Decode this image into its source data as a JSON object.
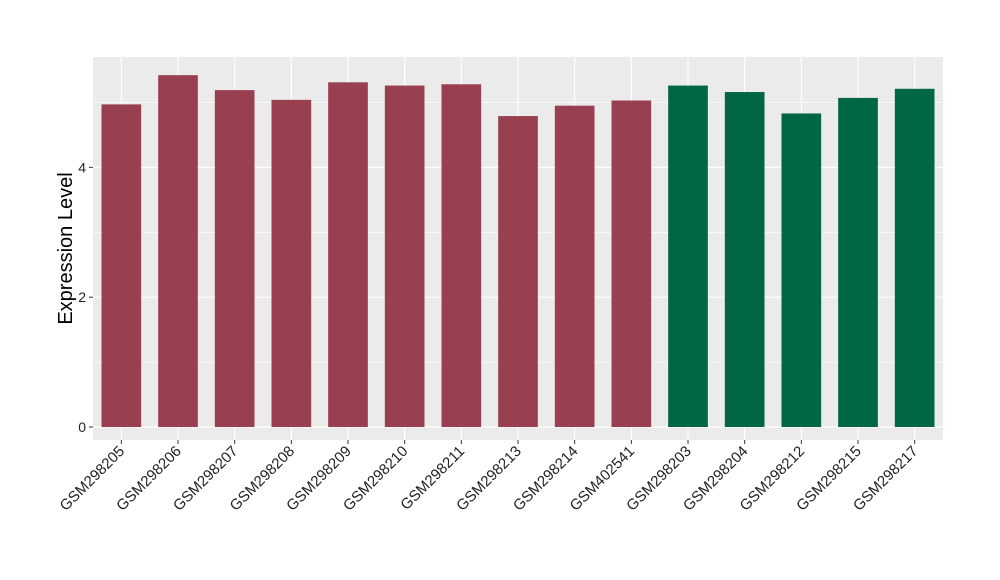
{
  "chart_data": {
    "type": "bar",
    "title": "",
    "xlabel": "",
    "ylabel": "Expression Level",
    "ylim": [
      -0.2,
      5.7
    ],
    "yticks": [
      0,
      2,
      4
    ],
    "grid": true,
    "legend": "none",
    "panel_background": "#ebebeb",
    "grid_color": "#ffffff",
    "categories": [
      "GSM298205",
      "GSM298206",
      "GSM298207",
      "GSM298208",
      "GSM298209",
      "GSM298210",
      "GSM298211",
      "GSM298213",
      "GSM298214",
      "GSM402541",
      "GSM298203",
      "GSM298204",
      "GSM298212",
      "GSM298215",
      "GSM298217"
    ],
    "values": [
      4.97,
      5.42,
      5.19,
      5.04,
      5.31,
      5.26,
      5.28,
      4.79,
      4.95,
      5.03,
      5.26,
      5.16,
      4.83,
      5.07,
      5.21
    ],
    "bar_colors": [
      "#994050",
      "#994050",
      "#994050",
      "#994050",
      "#994050",
      "#994050",
      "#994050",
      "#994050",
      "#994050",
      "#994050",
      "#006644",
      "#006644",
      "#006644",
      "#006644",
      "#006644"
    ]
  }
}
